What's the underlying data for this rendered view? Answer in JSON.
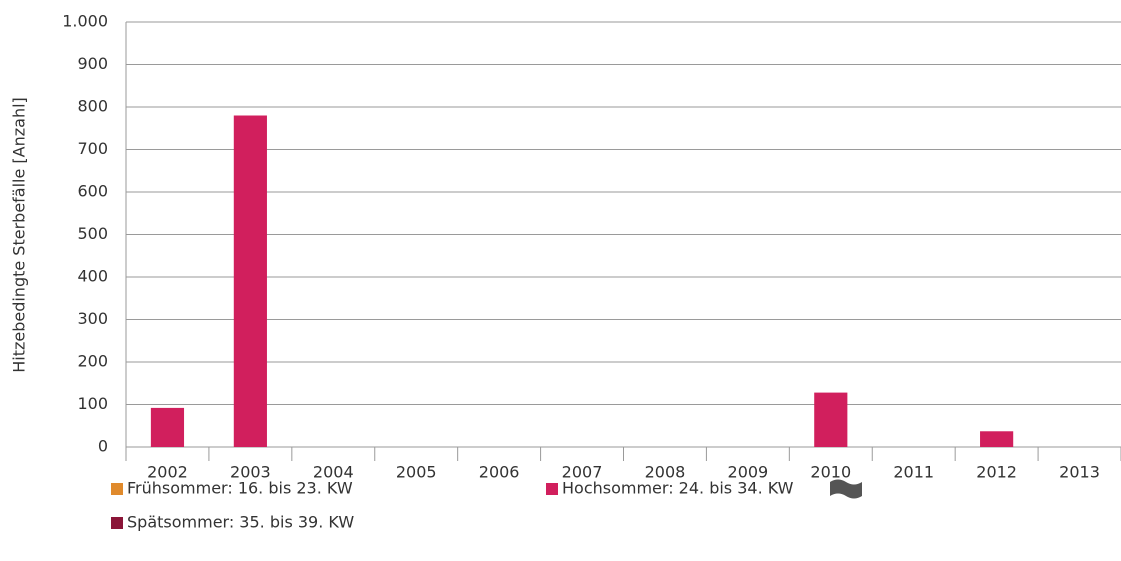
{
  "chart_data": {
    "type": "bar",
    "y_label": "Hitzebedingte Sterbefälle [Anzahl]",
    "categories": [
      "2002",
      "2003",
      "2004",
      "2005",
      "2006",
      "2007",
      "2008",
      "2009",
      "2010",
      "2011",
      "2012",
      "2013"
    ],
    "series": [
      {
        "name": "Frühsommer: 16. bis 23. KW",
        "color": "#e08a2c",
        "values": [
          0,
          0,
          0,
          0,
          0,
          0,
          0,
          0,
          0,
          0,
          0,
          0
        ]
      },
      {
        "name": "Hochsommer: 24. bis 34. KW",
        "color": "#d11f5d",
        "values": [
          92,
          780,
          0,
          0,
          0,
          0,
          0,
          0,
          128,
          0,
          37,
          0
        ]
      },
      {
        "name": "Spätsommer: 35. bis 39. KW",
        "color": "#8b1538",
        "values": [
          0,
          0,
          0,
          0,
          0,
          0,
          0,
          0,
          0,
          0,
          0,
          0
        ]
      }
    ],
    "ylim": [
      0,
      1000
    ],
    "yticks": [
      0,
      100,
      200,
      300,
      400,
      500,
      600,
      700,
      800,
      900,
      {
        "value": 1000,
        "label": "1.000"
      }
    ],
    "grid": true
  }
}
